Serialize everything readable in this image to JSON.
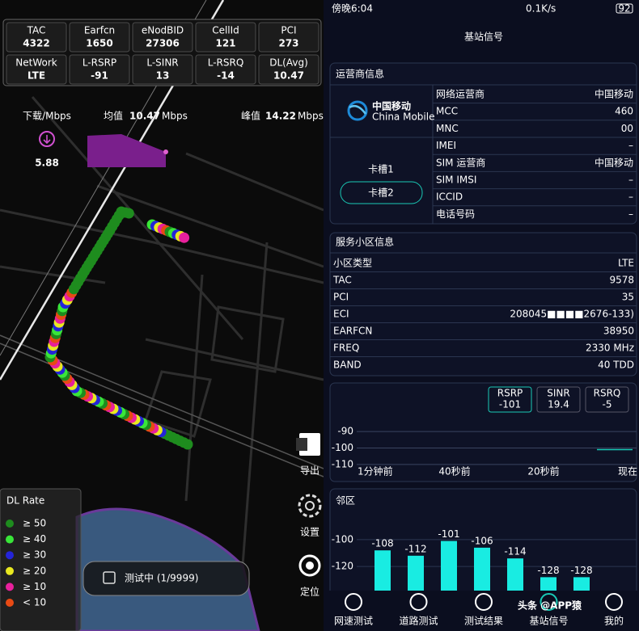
{
  "map_panel": {
    "stats": [
      {
        "label": "TAC",
        "value": 4322
      },
      {
        "label": "Earfcn",
        "value": 1650
      },
      {
        "label": "eNodBID",
        "value": 27306
      },
      {
        "label": "CellId",
        "value": 121
      },
      {
        "label": "PCI",
        "value": 273
      },
      {
        "label": "NetWork",
        "value": "LTE"
      },
      {
        "label": "L-RSRP",
        "value": -91
      },
      {
        "label": "L-SINR",
        "value": 13
      },
      {
        "label": "L-RSRQ",
        "value": -14
      },
      {
        "label": "DL(Avg)",
        "value": 10.47
      }
    ],
    "download": {
      "label": "下载/Mbps",
      "value": 5.88,
      "average_label": "均值",
      "average": 10.47,
      "average_unit": "Mbps",
      "peak_label": "峰值",
      "peak": 14.22,
      "peak_unit": "Mbps"
    },
    "legend": {
      "title": "DL Rate",
      "items": [
        {
          "label": "≥ 50",
          "color": "#1e8c1e"
        },
        {
          "label": "≥ 40",
          "color": "#39e639"
        },
        {
          "label": "≥ 30",
          "color": "#2424d8"
        },
        {
          "label": "≥ 20",
          "color": "#e8e820"
        },
        {
          "label": "≥ 10",
          "color": "#e8209c"
        },
        {
          "label": "< 10",
          "color": "#e84a14"
        }
      ]
    },
    "side_buttons": [
      "导出",
      "设置",
      "定位"
    ],
    "status": "测试中 (1/9999)"
  },
  "phone": {
    "status_bar": {
      "time": "傍晚6:04",
      "speed": "0.1K/s",
      "battery": 92
    },
    "title": "基站信号",
    "operator_card": {
      "title": "运营商信息",
      "logo_cn": "中国移动",
      "logo_en": "China Mobile",
      "slots": [
        "卡槽1",
        "卡槽2"
      ],
      "rows": [
        {
          "label": "网络运营商",
          "value": "中国移动"
        },
        {
          "label": "MCC",
          "value": 460
        },
        {
          "label": "MNC",
          "value": "00"
        },
        {
          "label": "IMEI",
          "value": "–"
        },
        {
          "label": "SIM 运营商",
          "value": "中国移动"
        },
        {
          "label": "SIM IMSI",
          "value": "–"
        },
        {
          "label": "ICCID",
          "value": "–"
        },
        {
          "label": "电话号码",
          "value": "–"
        }
      ]
    },
    "cell_card": {
      "title": "服务小区信息",
      "rows": [
        {
          "label": "小区类型",
          "value": "LTE"
        },
        {
          "label": "TAC",
          "value": 9578
        },
        {
          "label": "PCI",
          "value": 35
        },
        {
          "label": "ECI",
          "value": "208045■■■■2676-133)"
        },
        {
          "label": "EARFCN",
          "value": 38950
        },
        {
          "label": "FREQ",
          "value": "2330 MHz"
        },
        {
          "label": "BAND",
          "value": "40 TDD"
        }
      ]
    },
    "signal_chart": {
      "type": "line",
      "tabs": [
        {
          "name": "RSRP",
          "value": -101
        },
        {
          "name": "SINR",
          "value": 19.4
        },
        {
          "name": "RSRQ",
          "value": -5
        }
      ],
      "xlim": [
        -60,
        0
      ],
      "xticks": [
        {
          "value": -60,
          "label": "1分钟前"
        },
        {
          "value": -40,
          "label": "40秒前"
        },
        {
          "value": -20,
          "label": "20秒前"
        },
        {
          "value": 0,
          "label": "现在"
        }
      ],
      "ylim": [
        -112,
        -88
      ],
      "yticks": [
        -90,
        -100,
        -110
      ],
      "grid": true,
      "series": [
        {
          "color": "#19c9b5",
          "x": [
            -8,
            0
          ],
          "values": [
            -101,
            -101
          ]
        }
      ]
    },
    "neighbor_chart": {
      "type": "bar",
      "title": "邻区",
      "values": [
        -108,
        -112,
        -101,
        -106,
        -114,
        -128,
        -128
      ],
      "color": "#19ece2",
      "ylim": [
        -138,
        -88
      ],
      "yticks": [
        -100,
        -120
      ],
      "grid": true
    },
    "nav": [
      {
        "label": "网速测试",
        "active": false
      },
      {
        "label": "道路测试",
        "active": false
      },
      {
        "label": "测试结果",
        "active": false
      },
      {
        "label": "基站信号",
        "active": true
      },
      {
        "label": "我的",
        "active": false
      }
    ],
    "watermark": "头条 @APP猿"
  }
}
